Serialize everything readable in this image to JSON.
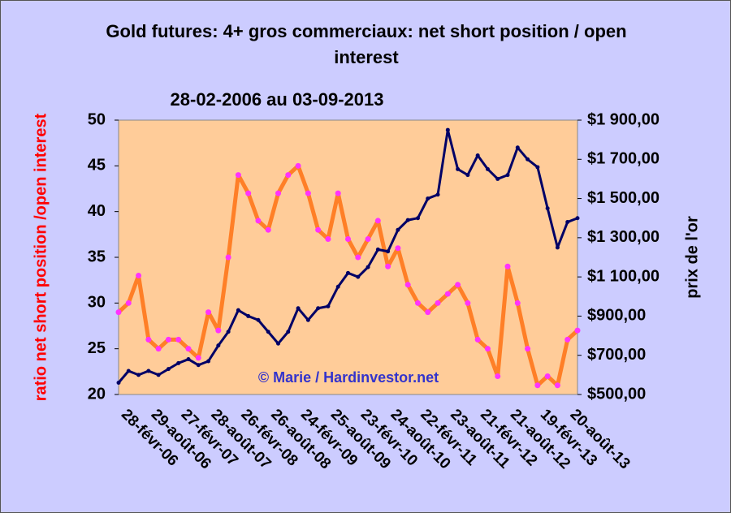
{
  "chart_data": {
    "type": "line",
    "title": "Gold futures: 4+ gros commerciaux: net short position / open interest",
    "subtitle": "28-02-2006 au 03-09-2013",
    "annotation": "© Marie / Hardinvestor.net",
    "y_label": "ratio net short position /open interest",
    "y2_label": "prix de l'or",
    "categories": [
      "28-févr-06",
      null,
      null,
      "29-août-06",
      null,
      null,
      "27-févr-07",
      null,
      null,
      "28-août-07",
      null,
      null,
      "26-févr-08",
      null,
      null,
      "26-août-08",
      null,
      null,
      "24-févr-09",
      null,
      null,
      "25-août-09",
      null,
      null,
      "23-févr-10",
      null,
      null,
      "24-août-10",
      null,
      null,
      "22-févr-11",
      null,
      null,
      "23-août-11",
      null,
      null,
      "21-févr-12",
      null,
      null,
      "21-août-12",
      null,
      null,
      "19-févr-13",
      null,
      null,
      "20-août-13",
      null
    ],
    "series": [
      {
        "name": "ratio",
        "color": "#ff7f27",
        "marker_color": "#ff33ff",
        "axis": "y",
        "values": [
          29,
          30,
          33,
          26,
          25,
          26,
          26,
          25,
          24,
          29,
          27,
          35,
          44,
          42,
          39,
          38,
          42,
          44,
          45,
          42,
          38,
          37,
          42,
          37,
          35,
          37,
          39,
          34,
          36,
          32,
          30,
          29,
          30,
          31,
          32,
          30,
          26,
          25,
          22,
          34,
          30,
          25,
          21,
          22,
          21,
          26,
          27
        ]
      },
      {
        "name": "prix de l'or",
        "color": "#000066",
        "marker_color": "#000066",
        "axis": "y2",
        "values": [
          560,
          620,
          600,
          620,
          600,
          630,
          660,
          680,
          650,
          670,
          750,
          820,
          930,
          900,
          880,
          820,
          760,
          820,
          940,
          880,
          940,
          950,
          1050,
          1120,
          1100,
          1150,
          1240,
          1230,
          1340,
          1390,
          1400,
          1500,
          1520,
          1850,
          1650,
          1620,
          1720,
          1650,
          1600,
          1620,
          1760,
          1700,
          1660,
          1450,
          1250,
          1380,
          1400
        ]
      }
    ],
    "ylim": [
      20,
      50
    ],
    "yticks": [
      20,
      25,
      30,
      35,
      40,
      45,
      50
    ],
    "y2lim": [
      500,
      1900
    ],
    "y2ticks": [
      {
        "value": 500,
        "label": "$500,00"
      },
      {
        "value": 700,
        "label": "$700,00"
      },
      {
        "value": 900,
        "label": "$900,00"
      },
      {
        "value": 1100,
        "label": "$1 100,00"
      },
      {
        "value": 1300,
        "label": "$1 300,00"
      },
      {
        "value": 1500,
        "label": "$1 500,00"
      },
      {
        "value": 1700,
        "label": "$1 700,00"
      },
      {
        "value": 1900,
        "label": "$1 900,00"
      }
    ]
  }
}
